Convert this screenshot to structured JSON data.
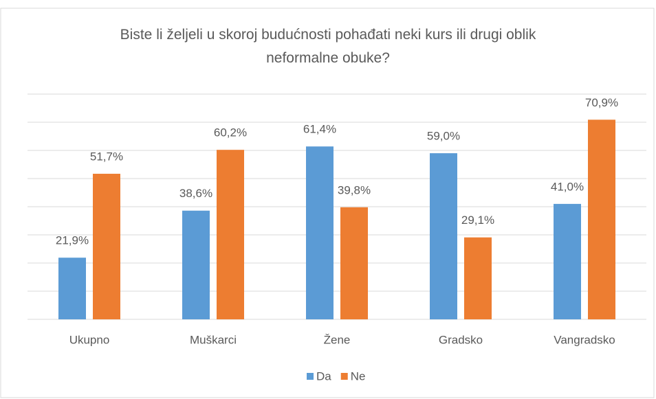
{
  "chart_data": {
    "type": "bar",
    "title": "Biste li željeli u skoroj budućnosti pohađati neki kurs ili drugi oblik neformalne obuke?",
    "categories": [
      "Ukupno",
      "Muškarci",
      "Žene",
      "Gradsko",
      "Vangradsko"
    ],
    "series": [
      {
        "name": "Da",
        "color": "#5b9bd5",
        "values": [
          21.9,
          38.6,
          61.4,
          59.0,
          41.0
        ],
        "value_labels": [
          "21,9%",
          "38,6%",
          "61,4%",
          "59,0%",
          "41,0%"
        ]
      },
      {
        "name": "Ne",
        "color": "#ed7d31",
        "values": [
          51.7,
          60.2,
          39.8,
          29.1,
          70.9
        ],
        "value_labels": [
          "51,7%",
          "60,2%",
          "39,8%",
          "29,1%",
          "70,9%"
        ]
      }
    ],
    "ylim": [
      0,
      80
    ],
    "yticks": [
      0,
      10,
      20,
      30,
      40,
      50,
      60,
      70,
      80
    ],
    "grid": true,
    "legend": "bottom"
  }
}
